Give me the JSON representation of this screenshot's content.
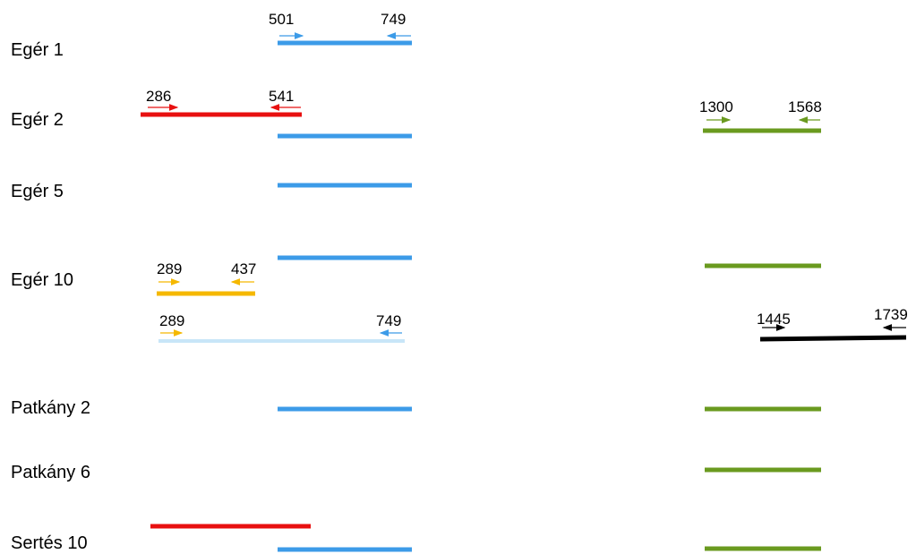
{
  "rows": [
    "Egér 1",
    "Egér 2",
    "Egér 5",
    "Egér 10",
    "Patkány 2",
    "Patkány 6",
    "Sertés 10"
  ],
  "primers": [
    {
      "forward": 501,
      "reverse": 749
    },
    {
      "forward": 286,
      "reverse": 541
    },
    {
      "forward": 1300,
      "reverse": 1568
    },
    {
      "forward": 289,
      "reverse": 437
    },
    {
      "forward": 289,
      "reverse": 749
    },
    {
      "forward": 1445,
      "reverse": 1739
    }
  ]
}
